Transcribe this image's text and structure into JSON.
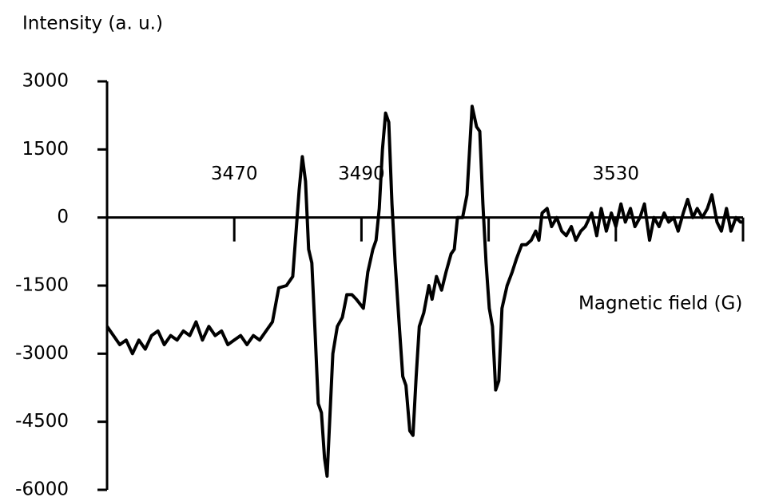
{
  "chart_data": {
    "type": "line",
    "y_label": "Intensity (a. u.)",
    "x_label": "Magnetic field (G)",
    "xlim": [
      3450,
      3550
    ],
    "xticks": [
      3470,
      3490,
      3530
    ],
    "x_unlabeled_ticks": [
      3510,
      3550
    ],
    "ylim": [
      -6000,
      3000
    ],
    "yticks": [
      3000,
      1500,
      0,
      -1500,
      -3000,
      -4500,
      -6000
    ],
    "color": "#000000",
    "x": [
      3450,
      3451,
      3452,
      3453,
      3454,
      3455,
      3456,
      3457,
      3458,
      3459,
      3460,
      3461,
      3462,
      3463,
      3464,
      3465,
      3466,
      3467,
      3468,
      3469,
      3470,
      3471,
      3472,
      3473,
      3474,
      3475,
      3476,
      3477,
      3478.2,
      3479.2,
      3480.2,
      3480.7,
      3481.2,
      3481.7,
      3482.2,
      3482.7,
      3483.2,
      3483.7,
      3484.2,
      3484.6,
      3485.0,
      3485.5,
      3486.2,
      3487.0,
      3487.7,
      3488.5,
      3489.2,
      3490.3,
      3491.0,
      3491.8,
      3492.3,
      3492.8,
      3493.3,
      3493.8,
      3494.3,
      3494.8,
      3495.3,
      3496.0,
      3496.5,
      3497.0,
      3497.6,
      3498.1,
      3498.6,
      3499.1,
      3499.8,
      3500.6,
      3501.1,
      3501.8,
      3502.6,
      3503.3,
      3504.1,
      3504.6,
      3505.1,
      3505.9,
      3506.6,
      3507.4,
      3508.1,
      3508.6,
      3509.1,
      3509.6,
      3510.1,
      3510.6,
      3511.1,
      3511.6,
      3512.1,
      3512.9,
      3513.7,
      3514.4,
      3515.2,
      3515.9,
      3516.7,
      3517.4,
      3517.9,
      3518.4,
      3519.2,
      3519.9,
      3520.7,
      3521.5,
      3522.2,
      3523.0,
      3523.7,
      3524.5,
      3525.2,
      3526.2,
      3527.0,
      3527.7,
      3528.5,
      3529.3,
      3530.0,
      3530.8,
      3531.5,
      3532.3,
      3533.0,
      3533.8,
      3534.5,
      3535.3,
      3536.0,
      3536.8,
      3537.6,
      3538.3,
      3539.1,
      3539.8,
      3540.6,
      3541.3,
      3542.1,
      3542.8,
      3543.6,
      3544.4,
      3545.1,
      3545.9,
      3546.6,
      3547.4,
      3548.1,
      3548.9,
      3549.6,
      3550.0
    ],
    "values": [
      -2400,
      -2600,
      -2800,
      -2700,
      -3000,
      -2700,
      -2900,
      -2600,
      -2500,
      -2800,
      -2600,
      -2700,
      -2500,
      -2600,
      -2300,
      -2700,
      -2400,
      -2600,
      -2500,
      -2800,
      -2700,
      -2600,
      -2800,
      -2600,
      -2700,
      -2500,
      -2300,
      -1550,
      -1500,
      -1300,
      600,
      1340,
      800,
      -700,
      -1000,
      -2500,
      -4100,
      -4300,
      -5300,
      -5700,
      -4500,
      -3000,
      -2400,
      -2200,
      -1700,
      -1700,
      -1800,
      -2000,
      -1200,
      -700,
      -500,
      200,
      1500,
      2300,
      2100,
      300,
      -1000,
      -2500,
      -3500,
      -3700,
      -4700,
      -4800,
      -3500,
      -2400,
      -2100,
      -1500,
      -1800,
      -1300,
      -1600,
      -1200,
      -800,
      -700,
      0,
      0,
      500,
      2450,
      2000,
      1900,
      300,
      -1000,
      -2000,
      -2400,
      -3800,
      -3600,
      -2000,
      -1500,
      -1200,
      -900,
      -600,
      -600,
      -500,
      -300,
      -500,
      100,
      200,
      -200,
      0,
      -300,
      -400,
      -200,
      -500,
      -300,
      -200,
      100,
      -400,
      200,
      -300,
      100,
      -200,
      300,
      -100,
      200,
      -200,
      0,
      300,
      -500,
      0,
      -200,
      100,
      -100,
      0,
      -300,
      100,
      400,
      0,
      200,
      0,
      200,
      500,
      -100,
      -300,
      200,
      -300,
      0,
      -100,
      -100
    ]
  }
}
